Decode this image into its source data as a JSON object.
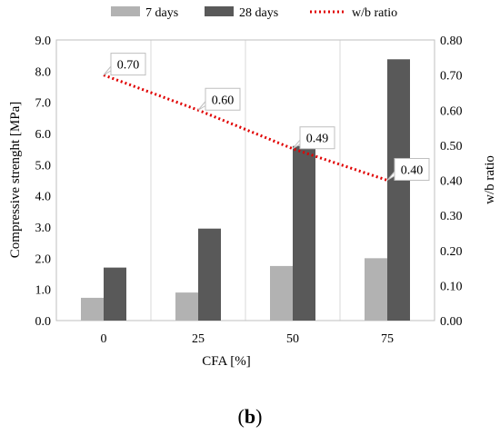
{
  "chart_data": {
    "type": "bar",
    "categories": [
      "0",
      "25",
      "50",
      "75"
    ],
    "series": [
      {
        "name": "7 days",
        "values": [
          0.73,
          0.9,
          1.75,
          2.0
        ],
        "color": "#b2b2b2",
        "axis": "left"
      },
      {
        "name": "28 days",
        "values": [
          1.7,
          2.95,
          5.6,
          8.38
        ],
        "color": "#595959",
        "axis": "left"
      }
    ],
    "line_series": {
      "name": "w/b ratio",
      "values": [
        0.7,
        0.6,
        0.49,
        0.4
      ],
      "labels": [
        "0.70",
        "0.60",
        "0.49",
        "0.40"
      ],
      "color": "#e00000",
      "style": "dotted",
      "axis": "right"
    },
    "xlabel": "CFA [%]",
    "ylabel": "Compressive strenght [MPa]",
    "y2label": "w/b ratio",
    "ylim": [
      0,
      9
    ],
    "y2lim": [
      0,
      0.8
    ],
    "yticks": [
      "0.0",
      "1.0",
      "2.0",
      "3.0",
      "4.0",
      "5.0",
      "6.0",
      "7.0",
      "8.0",
      "9.0"
    ],
    "y2ticks": [
      "0.00",
      "0.10",
      "0.20",
      "0.30",
      "0.40",
      "0.50",
      "0.60",
      "0.70",
      "0.80"
    ],
    "grid": "vertical",
    "legend": "top"
  },
  "panel_label": "b"
}
